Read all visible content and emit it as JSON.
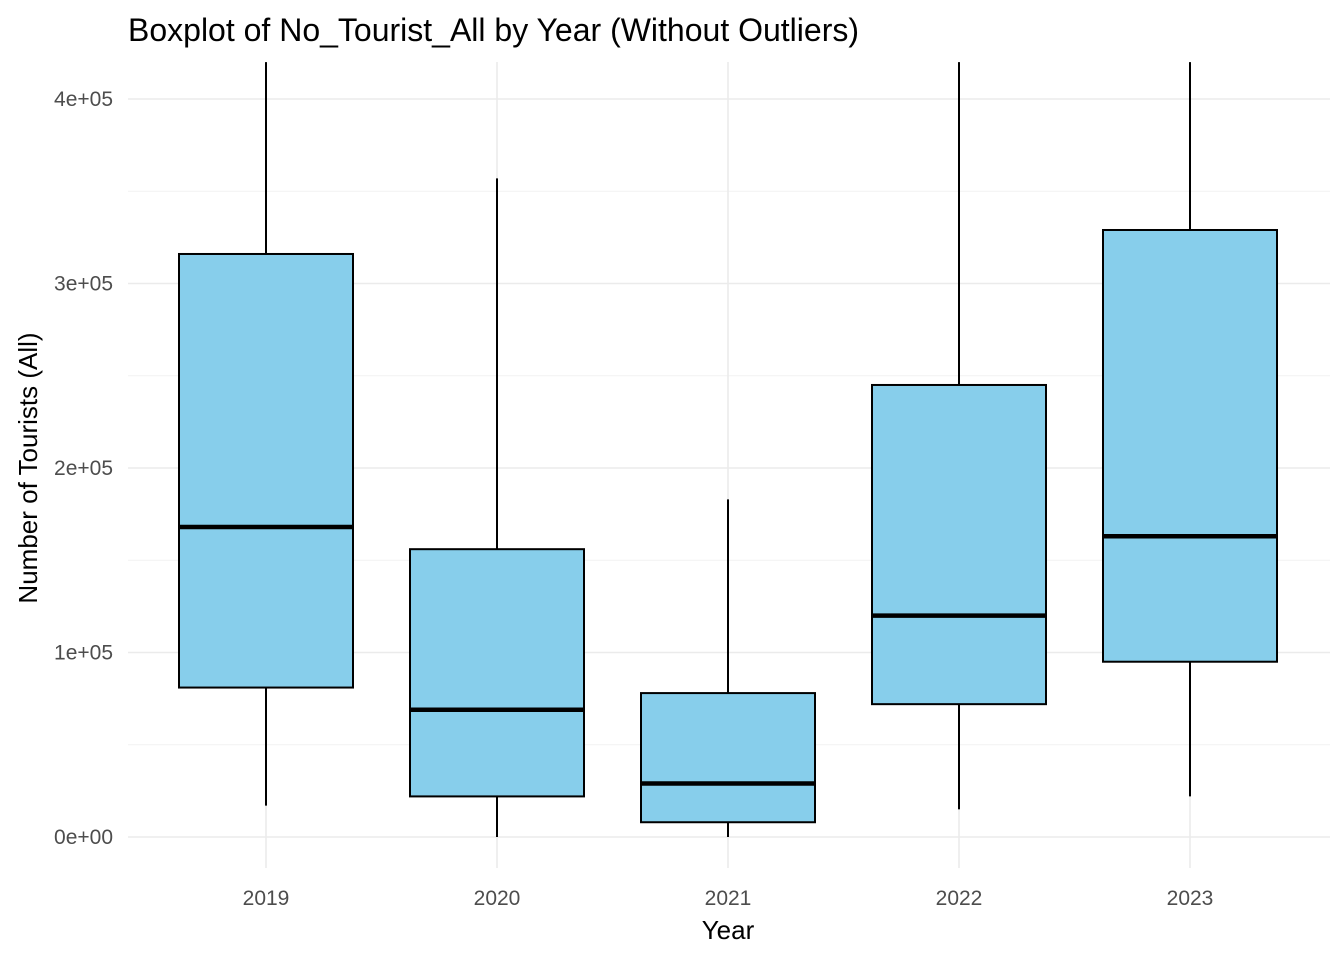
{
  "chart_data": {
    "type": "boxplot",
    "title": "Boxplot of No_Tourist_All by Year (Without Outliers)",
    "xlabel": "Year",
    "ylabel": "Number of Tourists (All)",
    "categories": [
      "2019",
      "2020",
      "2021",
      "2022",
      "2023"
    ],
    "ylim": [
      -17000,
      420000
    ],
    "yticks": [
      0,
      100000,
      200000,
      300000,
      400000
    ],
    "ytick_labels": [
      "0e+00",
      "1e+05",
      "2e+05",
      "3e+05",
      "4e+05"
    ],
    "boxes": [
      {
        "category": "2019",
        "whisker_low": 17000,
        "q1": 81000,
        "median": 168000,
        "q3": 316000,
        "whisker_high": 420000
      },
      {
        "category": "2020",
        "whisker_low": 0,
        "q1": 22000,
        "median": 69000,
        "q3": 156000,
        "whisker_high": 357000
      },
      {
        "category": "2021",
        "whisker_low": 0,
        "q1": 8000,
        "median": 29000,
        "q3": 78000,
        "whisker_high": 183000
      },
      {
        "category": "2022",
        "whisker_low": 15000,
        "q1": 72000,
        "median": 120000,
        "q3": 245000,
        "whisker_high": 420000
      },
      {
        "category": "2023",
        "whisker_low": 22000,
        "q1": 95000,
        "median": 163000,
        "q3": 329000,
        "whisker_high": 420000
      }
    ],
    "box_fill": "#87ceeb",
    "line_color": "#000000",
    "grid": true,
    "legend": "none"
  }
}
